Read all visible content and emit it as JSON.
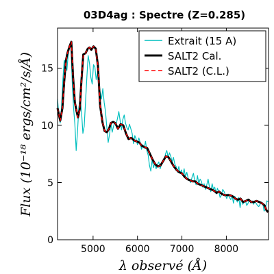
{
  "chart_data": {
    "type": "line",
    "title": "03D4ag : Spectre (Z=0.285)",
    "xlabel": "λ observé (Å)",
    "ylabel": "Flux (10⁻¹⁸ ergs/cm²/s/Å)",
    "xlim": [
      4200,
      8950
    ],
    "ylim": [
      0,
      18.5
    ],
    "x_ticks": [
      5000,
      6000,
      7000,
      8000
    ],
    "y_ticks": [
      0,
      5,
      10,
      15
    ],
    "grid": false,
    "legend_position": "top-right",
    "series": [
      {
        "name": "Extrait (15 A)",
        "color": "#00bfbf",
        "style": "solid",
        "x": [
          4200,
          4230,
          4260,
          4290,
          4320,
          4350,
          4380,
          4410,
          4440,
          4470,
          4500,
          4530,
          4560,
          4590,
          4620,
          4650,
          4680,
          4710,
          4740,
          4770,
          4800,
          4830,
          4860,
          4890,
          4920,
          4950,
          4980,
          5010,
          5040,
          5070,
          5100,
          5130,
          5160,
          5190,
          5220,
          5250,
          5280,
          5310,
          5340,
          5370,
          5400,
          5430,
          5460,
          5490,
          5520,
          5550,
          5580,
          5610,
          5640,
          5670,
          5700,
          5730,
          5760,
          5790,
          5820,
          5850,
          5880,
          5910,
          5940,
          5970,
          6000,
          6030,
          6060,
          6090,
          6120,
          6150,
          6180,
          6210,
          6240,
          6270,
          6300,
          6330,
          6360,
          6390,
          6420,
          6450,
          6480,
          6510,
          6540,
          6570,
          6600,
          6630,
          6660,
          6690,
          6720,
          6750,
          6780,
          6810,
          6840,
          6870,
          6900,
          6930,
          6960,
          6990,
          7020,
          7050,
          7080,
          7110,
          7140,
          7170,
          7200,
          7230,
          7260,
          7290,
          7320,
          7350,
          7380,
          7410,
          7440,
          7470,
          7500,
          7530,
          7560,
          7590,
          7620,
          7650,
          7680,
          7710,
          7740,
          7770,
          7800,
          7830,
          7860,
          7890,
          7920,
          7950,
          7980,
          8010,
          8040,
          8070,
          8100,
          8130,
          8160,
          8190,
          8220,
          8250,
          8280,
          8310,
          8340,
          8370,
          8400,
          8430,
          8460,
          8490,
          8520,
          8550,
          8580,
          8610,
          8640,
          8670,
          8700,
          8730,
          8760,
          8790,
          8820,
          8850,
          8880,
          8910,
          8940
        ],
        "y": [
          12.3,
          10.9,
          10.2,
          11.6,
          14.0,
          15.7,
          15.2,
          14.8,
          16.2,
          16.8,
          17.2,
          13.8,
          11.6,
          10.1,
          7.8,
          9.5,
          11.6,
          12.3,
          11.2,
          9.3,
          9.9,
          12.1,
          14.2,
          16.1,
          15.4,
          14.2,
          13.6,
          15.3,
          15.1,
          14.0,
          14.6,
          13.8,
          12.9,
          12.3,
          13.2,
          12.0,
          11.2,
          9.8,
          8.5,
          9.2,
          10.2,
          9.4,
          9.9,
          10.3,
          10.1,
          10.6,
          11.2,
          10.4,
          9.6,
          10.5,
          10.9,
          10.2,
          9.8,
          9.6,
          10.1,
          9.7,
          9.3,
          8.4,
          9.1,
          8.8,
          8.3,
          8.9,
          8.5,
          7.9,
          8.3,
          8.0,
          8.6,
          7.8,
          7.4,
          6.5,
          6.0,
          7.0,
          6.3,
          6.7,
          6.2,
          6.6,
          6.8,
          6.2,
          6.6,
          6.8,
          6.9,
          7.5,
          7.8,
          7.2,
          7.6,
          7.3,
          6.8,
          7.2,
          6.6,
          6.4,
          5.9,
          6.4,
          5.8,
          6.1,
          5.6,
          6.2,
          5.5,
          5.9,
          5.4,
          5.2,
          5.0,
          5.5,
          5.8,
          5.1,
          4.8,
          5.6,
          4.9,
          5.3,
          5.1,
          4.6,
          4.9,
          4.4,
          4.8,
          5.3,
          4.6,
          4.2,
          4.9,
          4.4,
          4.6,
          4.0,
          4.5,
          4.2,
          3.7,
          3.9,
          4.4,
          4.2,
          3.9,
          3.6,
          4.0,
          3.7,
          3.5,
          3.9,
          3.2,
          3.8,
          3.5,
          3.3,
          3.7,
          2.8,
          3.6,
          3.1,
          3.3,
          3.4,
          3.0,
          3.2,
          3.5,
          3.2,
          3.4,
          3.1,
          3.3,
          3.2,
          3.0,
          2.9,
          3.1,
          3.3,
          3.2,
          2.5,
          2.7,
          3.4,
          3.3
        ]
      },
      {
        "name": "SALT2 Cal.",
        "color": "#000000",
        "style": "solid",
        "x": [
          4200,
          4260,
          4310,
          4350,
          4390,
          4430,
          4470,
          4510,
          4550,
          4590,
          4630,
          4660,
          4700,
          4740,
          4780,
          4830,
          4880,
          4920,
          4960,
          5010,
          5060,
          5110,
          5160,
          5210,
          5260,
          5310,
          5360,
          5400,
          5450,
          5500,
          5560,
          5620,
          5680,
          5740,
          5800,
          5860,
          5920,
          5980,
          6040,
          6100,
          6160,
          6220,
          6280,
          6340,
          6400,
          6460,
          6520,
          6580,
          6640,
          6700,
          6760,
          6820,
          6880,
          6940,
          7000,
          7060,
          7120,
          7180,
          7240,
          7300,
          7360,
          7420,
          7480,
          7540,
          7600,
          7660,
          7720,
          7780,
          7840,
          7900,
          7960,
          8020,
          8080,
          8140,
          8200,
          8260,
          8320,
          8380,
          8440,
          8500,
          8560,
          8620,
          8680,
          8740,
          8800,
          8860,
          8900,
          8940
        ],
        "y": [
          11.5,
          10.4,
          11.5,
          13.8,
          15.7,
          16.4,
          16.9,
          17.3,
          14.2,
          12.0,
          11.2,
          10.7,
          11.4,
          14.0,
          16.2,
          16.3,
          16.7,
          16.8,
          16.6,
          16.9,
          16.7,
          15.2,
          11.7,
          10.3,
          9.5,
          9.4,
          9.7,
          10.2,
          10.3,
          10.2,
          9.7,
          10.1,
          10.0,
          9.3,
          8.8,
          8.9,
          8.7,
          8.6,
          8.5,
          8.2,
          8.1,
          8.0,
          7.5,
          7.0,
          6.6,
          6.4,
          6.5,
          6.9,
          7.3,
          7.2,
          6.8,
          6.4,
          6.1,
          5.9,
          5.8,
          5.5,
          5.3,
          5.2,
          5.1,
          5.1,
          4.9,
          4.8,
          4.7,
          4.6,
          4.5,
          4.4,
          4.3,
          4.1,
          4.2,
          4.0,
          3.9,
          3.9,
          3.9,
          3.8,
          3.6,
          3.5,
          3.6,
          3.3,
          3.4,
          3.5,
          3.3,
          3.3,
          3.4,
          3.3,
          3.2,
          3.0,
          2.6,
          2.4
        ]
      },
      {
        "name": "SALT2 (C.L.)",
        "color": "#ff0000",
        "style": "dashed",
        "x": [
          4200,
          4260,
          4310,
          4350,
          4390,
          4430,
          4470,
          4510,
          4550,
          4590,
          4630,
          4660,
          4700,
          4740,
          4780,
          4830,
          4880,
          4920,
          4960,
          5010,
          5060,
          5110,
          5160,
          5210,
          5260,
          5310,
          5360,
          5400,
          5450,
          5500,
          5560,
          5620,
          5680,
          5740,
          5800,
          5860,
          5920,
          5980,
          6040,
          6100,
          6160,
          6220,
          6280,
          6340,
          6400,
          6460,
          6520,
          6580,
          6640,
          6700,
          6760,
          6820,
          6880,
          6940,
          7000,
          7060,
          7120,
          7180,
          7240,
          7300,
          7360,
          7420,
          7480,
          7540,
          7600,
          7660,
          7720,
          7780,
          7840,
          7900,
          7960,
          8020,
          8080,
          8140,
          8200,
          8260,
          8320,
          8380,
          8440,
          8500,
          8560,
          8620,
          8680,
          8740,
          8800,
          8860,
          8900,
          8940
        ],
        "y": [
          11.5,
          10.4,
          11.5,
          13.8,
          15.7,
          16.4,
          16.9,
          17.3,
          14.2,
          12.0,
          11.2,
          10.7,
          11.4,
          14.0,
          16.2,
          16.3,
          16.7,
          16.8,
          16.6,
          16.9,
          16.7,
          15.2,
          11.7,
          10.3,
          9.5,
          9.4,
          9.7,
          10.2,
          10.3,
          10.2,
          9.7,
          10.1,
          10.0,
          9.3,
          8.8,
          8.9,
          8.7,
          8.6,
          8.5,
          8.2,
          8.1,
          8.0,
          7.5,
          7.0,
          6.6,
          6.4,
          6.5,
          6.9,
          7.3,
          7.2,
          6.8,
          6.4,
          6.1,
          5.9,
          5.8,
          5.5,
          5.3,
          5.2,
          5.1,
          5.1,
          4.9,
          4.8,
          4.7,
          4.6,
          4.5,
          4.4,
          4.3,
          4.1,
          4.2,
          4.0,
          3.9,
          3.9,
          3.9,
          3.8,
          3.6,
          3.5,
          3.6,
          3.3,
          3.4,
          3.5,
          3.3,
          3.3,
          3.4,
          3.3,
          3.2,
          3.0,
          2.6,
          2.4
        ]
      }
    ]
  }
}
